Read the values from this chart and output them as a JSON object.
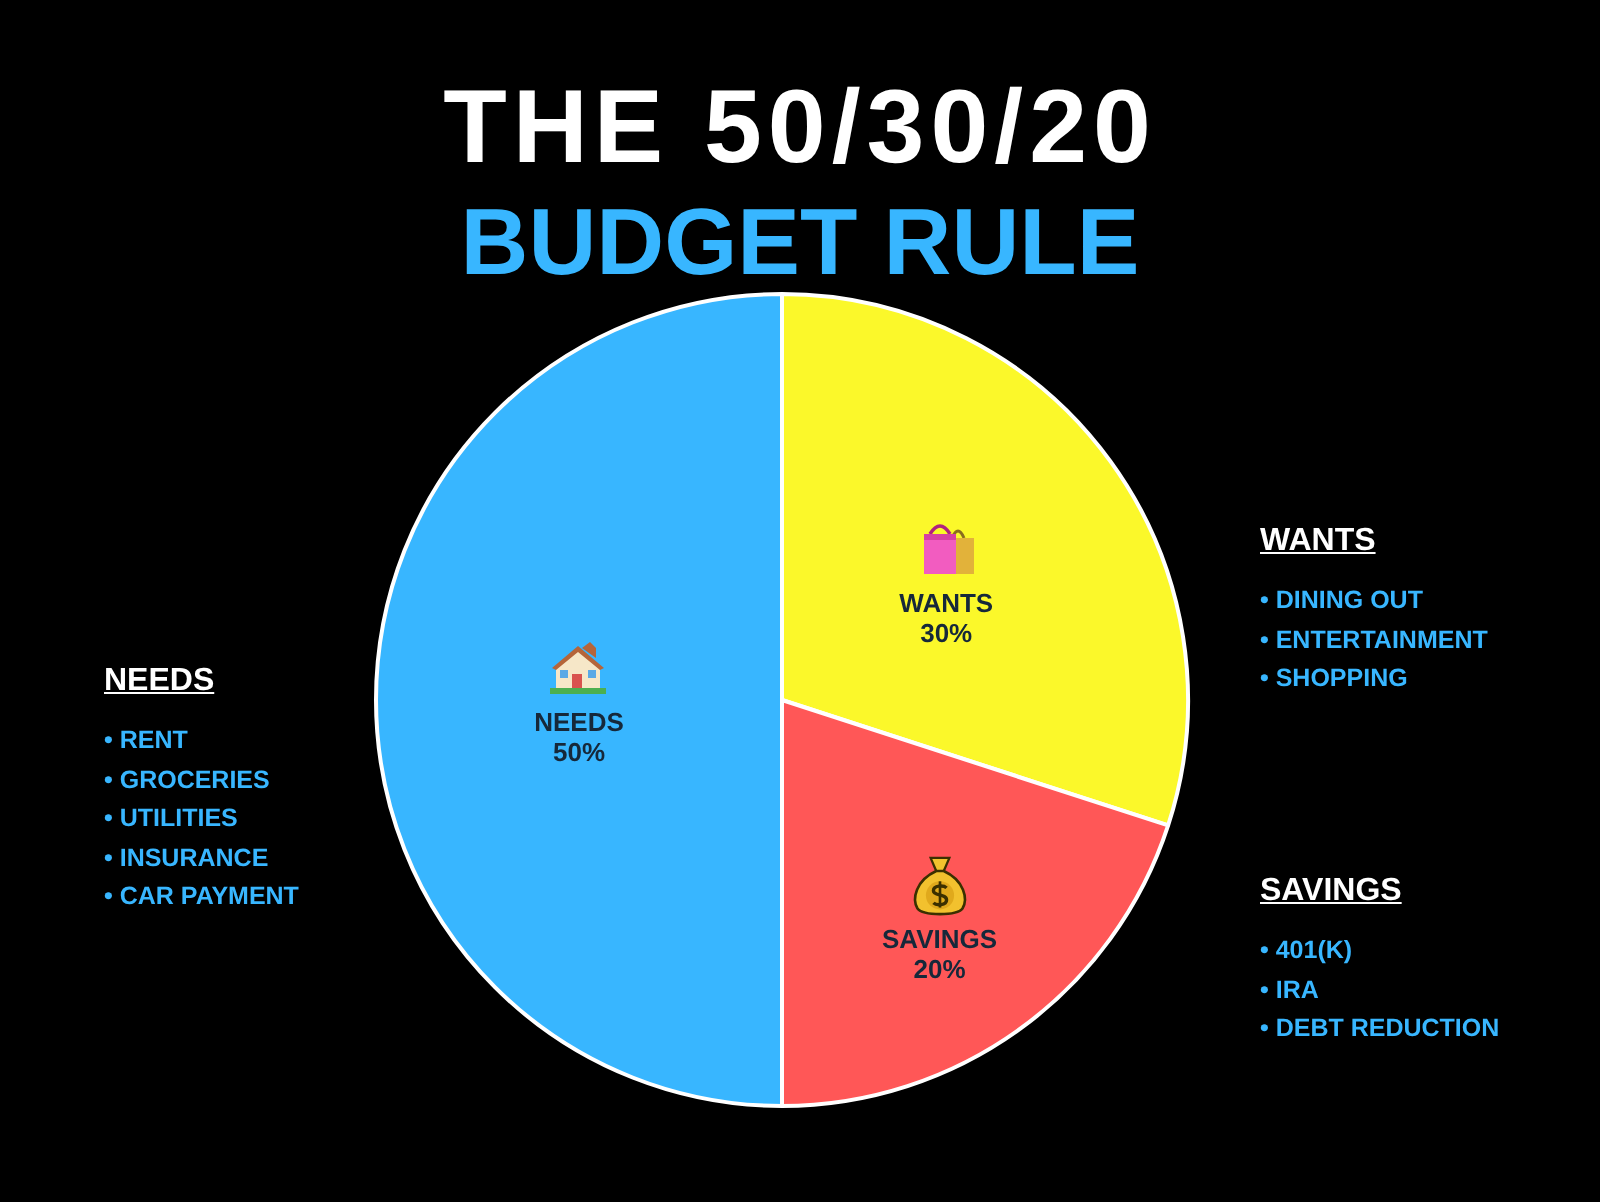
{
  "chart_data": {
    "type": "pie",
    "title": "THE 50/30/20",
    "subtitle": "BUDGET RULE",
    "categories": [
      "NEEDS",
      "WANTS",
      "SAVINGS"
    ],
    "values": [
      50,
      30,
      20
    ],
    "value_labels": [
      "50%",
      "30%",
      "20%"
    ],
    "colors": [
      "#38b6ff",
      "#fbf82a",
      "#ff5757"
    ],
    "legend": false,
    "annotations": [
      "NEEDS\n• RENT\n• GROCERIES\n• UTILITIES\n• INSURANCE\n• CAR PAYMENT",
      "WANTS\n• DINING OUT\n• ENTERTAINMENT\n• SHOPPING",
      "SAVINGS\n• 401(K)\n• IRA\n• DEBT REDUCTION"
    ]
  }
}
